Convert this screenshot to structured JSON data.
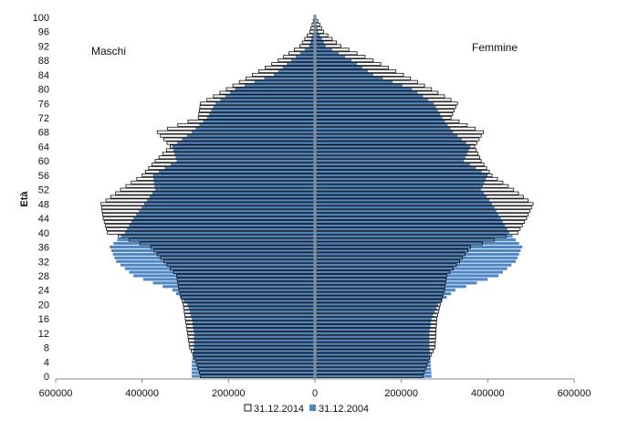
{
  "chart_data": {
    "type": "bar",
    "orientation": "horizontal",
    "ylabel": "Età",
    "left_label": "Maschi",
    "right_label": "Femmine",
    "x_ticks": [
      "600000",
      "400000",
      "200000",
      "0",
      "200000",
      "400000",
      "600000"
    ],
    "y_ticks": [
      "0",
      "4",
      "8",
      "12",
      "16",
      "20",
      "24",
      "28",
      "32",
      "36",
      "40",
      "44",
      "48",
      "52",
      "56",
      "60",
      "64",
      "68",
      "72",
      "76",
      "80",
      "84",
      "88",
      "92",
      "96",
      "100"
    ],
    "xlim": [
      -600000,
      600000
    ],
    "ylim": [
      0,
      100
    ],
    "grid": false,
    "legend_position": "bottom",
    "colors": {
      "series_2014_fill": "#ffffff",
      "series_2014_stroke": "#111111",
      "series_2004_fill": "#4f86c6",
      "axis": "#7f8fa0"
    },
    "age_keys": [
      0,
      4,
      8,
      12,
      16,
      20,
      24,
      28,
      32,
      36,
      40,
      44,
      48,
      52,
      56,
      60,
      64,
      68,
      72,
      76,
      80,
      84,
      88,
      92,
      96,
      100
    ],
    "series": [
      {
        "name": "31.12.2014",
        "males": [
          265000,
          275000,
          290000,
          295000,
          300000,
          305000,
          315000,
          320000,
          350000,
          380000,
          480000,
          490000,
          495000,
          450000,
          400000,
          370000,
          335000,
          365000,
          270000,
          265000,
          205000,
          145000,
          85000,
          35000,
          12000,
          1000
        ],
        "females": [
          250000,
          262000,
          278000,
          280000,
          282000,
          290000,
          300000,
          305000,
          335000,
          360000,
          470000,
          490000,
          505000,
          460000,
          410000,
          385000,
          370000,
          390000,
          315000,
          330000,
          270000,
          205000,
          135000,
          60000,
          20000,
          2500
        ]
      },
      {
        "name": "31.12.2004",
        "males": [
          285000,
          285000,
          280000,
          280000,
          285000,
          295000,
          330000,
          420000,
          460000,
          475000,
          440000,
          420000,
          395000,
          370000,
          375000,
          320000,
          330000,
          285000,
          250000,
          230000,
          185000,
          95000,
          55000,
          13000,
          3500,
          300
        ],
        "females": [
          270000,
          268000,
          265000,
          265000,
          270000,
          285000,
          325000,
          425000,
          465000,
          480000,
          450000,
          430000,
          410000,
          385000,
          400000,
          345000,
          360000,
          320000,
          295000,
          275000,
          225000,
          135000,
          85000,
          25000,
          7000,
          800
        ]
      }
    ]
  }
}
